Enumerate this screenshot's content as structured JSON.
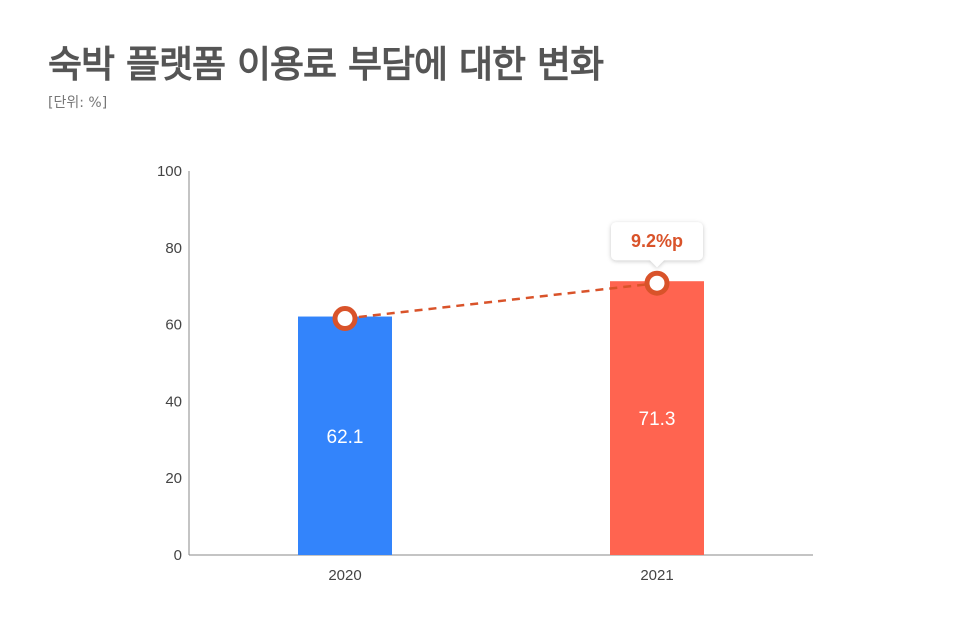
{
  "title": "숙박 플랫폼 이용료 부담에 대한 변화",
  "unit_label": "[단위: %]",
  "colors": {
    "bar_2020": "#3384FB",
    "bar_2021": "#FF6450",
    "trend_line": "#D9532A",
    "axis": "#888888",
    "title": "#555555"
  },
  "chart_data": {
    "type": "bar",
    "categories": [
      "2020",
      "2021"
    ],
    "values": [
      62.1,
      71.3
    ],
    "data_labels": [
      "62.1",
      "71.3"
    ],
    "ylim": [
      0,
      100
    ],
    "yticks": [
      0,
      20,
      40,
      60,
      80,
      100
    ],
    "grid": false,
    "trend_line": true,
    "annotation": "9.2%p",
    "xlabel": "",
    "ylabel": ""
  }
}
